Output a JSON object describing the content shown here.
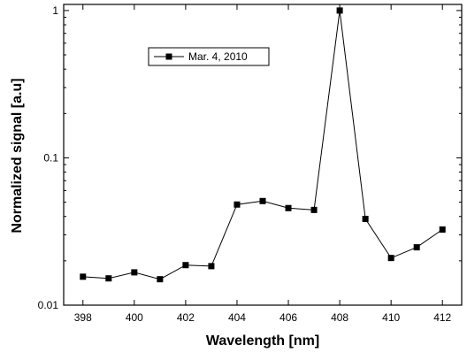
{
  "chart_data": {
    "type": "line",
    "x_label": "Wavelength [nm]",
    "y_label": "Normalized signal [a.u]",
    "x": [
      398,
      399,
      400,
      401,
      402,
      403,
      404,
      405,
      406,
      407,
      408,
      409,
      410,
      411,
      412
    ],
    "series": [
      {
        "name": "Mar. 4, 2010",
        "color": "#000000",
        "values": [
          0.0156,
          0.0152,
          0.0167,
          0.015,
          0.0187,
          0.0184,
          0.0482,
          0.0509,
          0.0456,
          0.0443,
          1.0,
          0.0385,
          0.0209,
          0.0247,
          0.0326
        ]
      }
    ],
    "xlim": [
      397.25,
      412.75
    ],
    "xticks": [
      398,
      400,
      402,
      404,
      406,
      408,
      410,
      412
    ],
    "ylim": [
      0.01,
      1.1
    ],
    "yticks": [
      0.01,
      0.1,
      1
    ],
    "log_y": true,
    "legend": "upper-left"
  }
}
